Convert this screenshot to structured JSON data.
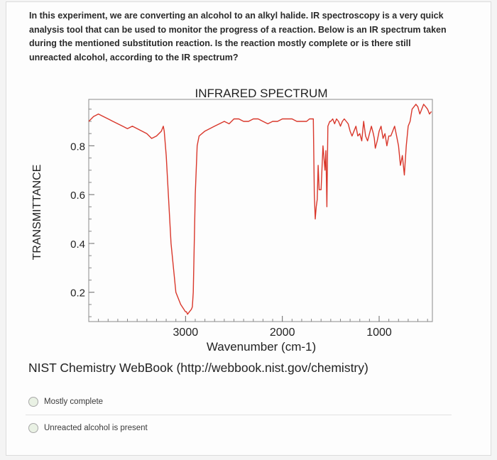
{
  "question": {
    "text": "In this experiment, we are converting an alcohol to an alkyl halide. IR spectroscopy is a very quick analysis tool that can be used to monitor the progress of a reaction. Below is an IR spectrum taken during the mentioned substitution reaction. Is the reaction mostly complete or is there still unreacted alcohol, according to the IR spectrum?"
  },
  "source_text": "NIST Chemistry WebBook (http://webbook.nist.gov/chemistry)",
  "options": [
    {
      "label": "Mostly complete"
    },
    {
      "label": "Unreacted alcohol is present"
    }
  ],
  "colors": {
    "line": "#d9372b",
    "radio": "#e9f1e4"
  },
  "chart_data": {
    "type": "line",
    "title": "INFRARED SPECTRUM",
    "xlabel": "Wavenumber (cm-1)",
    "ylabel": "TRANSMITTANCE",
    "xlim": [
      4000,
      450
    ],
    "ylim": [
      0.08,
      0.99
    ],
    "x_ticks": [
      3000,
      2000,
      1000
    ],
    "x_tick_labels": [
      "3000",
      "2000",
      "1000"
    ],
    "y_ticks": [
      0.2,
      0.4,
      0.6,
      0.8
    ],
    "y_tick_labels": [
      "0.2",
      "0.4",
      "0.6",
      "0.8"
    ],
    "series": [
      {
        "x": [
          4000,
          3950,
          3900,
          3850,
          3800,
          3750,
          3700,
          3650,
          3600,
          3550,
          3500,
          3450,
          3400,
          3350,
          3300,
          3250,
          3230,
          3220,
          3200,
          3150,
          3100,
          3050,
          3000,
          2990,
          2980,
          2960,
          2940,
          2930,
          2920,
          2900,
          2880,
          2860,
          2800,
          2750,
          2700,
          2650,
          2600,
          2550,
          2500,
          2450,
          2400,
          2350,
          2300,
          2250,
          2200,
          2150,
          2100,
          2050,
          2000,
          1950,
          1900,
          1850,
          1800,
          1750,
          1720,
          1700,
          1680,
          1670,
          1660,
          1650,
          1640,
          1630,
          1620,
          1600,
          1580,
          1560,
          1550,
          1540,
          1530,
          1510,
          1500,
          1480,
          1460,
          1440,
          1420,
          1400,
          1380,
          1360,
          1340,
          1320,
          1300,
          1280,
          1260,
          1240,
          1220,
          1200,
          1180,
          1160,
          1140,
          1120,
          1100,
          1080,
          1060,
          1050,
          1040,
          1020,
          1000,
          980,
          960,
          940,
          920,
          900,
          880,
          860,
          840,
          820,
          800,
          780,
          760,
          740,
          720,
          700,
          680,
          660,
          640,
          620,
          600,
          580,
          560,
          540,
          520,
          500,
          480,
          460
        ],
        "y": [
          0.9,
          0.92,
          0.93,
          0.92,
          0.91,
          0.9,
          0.89,
          0.88,
          0.87,
          0.88,
          0.87,
          0.86,
          0.85,
          0.83,
          0.84,
          0.86,
          0.88,
          0.86,
          0.76,
          0.4,
          0.2,
          0.15,
          0.12,
          0.12,
          0.11,
          0.12,
          0.13,
          0.14,
          0.2,
          0.6,
          0.8,
          0.84,
          0.86,
          0.87,
          0.88,
          0.89,
          0.9,
          0.89,
          0.91,
          0.91,
          0.9,
          0.9,
          0.91,
          0.91,
          0.9,
          0.89,
          0.9,
          0.9,
          0.91,
          0.91,
          0.91,
          0.9,
          0.9,
          0.9,
          0.91,
          0.91,
          0.91,
          0.6,
          0.5,
          0.55,
          0.58,
          0.72,
          0.62,
          0.62,
          0.8,
          0.7,
          0.78,
          0.55,
          0.88,
          0.9,
          0.9,
          0.91,
          0.89,
          0.91,
          0.9,
          0.88,
          0.9,
          0.91,
          0.9,
          0.89,
          0.86,
          0.84,
          0.86,
          0.88,
          0.84,
          0.85,
          0.82,
          0.9,
          0.84,
          0.82,
          0.85,
          0.88,
          0.85,
          0.83,
          0.79,
          0.82,
          0.86,
          0.88,
          0.83,
          0.85,
          0.8,
          0.84,
          0.84,
          0.86,
          0.88,
          0.84,
          0.8,
          0.72,
          0.76,
          0.68,
          0.8,
          0.88,
          0.9,
          0.95,
          0.96,
          0.97,
          0.96,
          0.93,
          0.95,
          0.97,
          0.96,
          0.95,
          0.93,
          0.94
        ]
      }
    ],
    "grid": false,
    "legend": "none"
  }
}
